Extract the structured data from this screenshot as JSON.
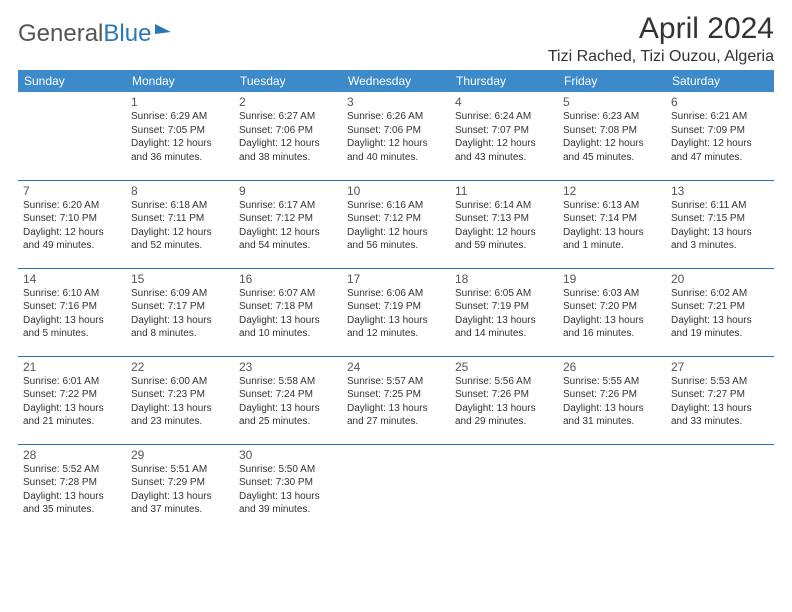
{
  "brand": {
    "part1": "General",
    "part2": "Blue"
  },
  "title": "April 2024",
  "location": "Tizi Rached, Tizi Ouzou, Algeria",
  "colors": {
    "header_bg": "#3c8ac9",
    "header_text": "#ffffff",
    "row_divider": "#2b6fa8",
    "text": "#333333",
    "logo_blue": "#2a78b8"
  },
  "weekdays": [
    "Sunday",
    "Monday",
    "Tuesday",
    "Wednesday",
    "Thursday",
    "Friday",
    "Saturday"
  ],
  "cells": [
    [
      null,
      {
        "d": "1",
        "sr": "6:29 AM",
        "ss": "7:05 PM",
        "dl1": "Daylight: 12 hours",
        "dl2": "and 36 minutes."
      },
      {
        "d": "2",
        "sr": "6:27 AM",
        "ss": "7:06 PM",
        "dl1": "Daylight: 12 hours",
        "dl2": "and 38 minutes."
      },
      {
        "d": "3",
        "sr": "6:26 AM",
        "ss": "7:06 PM",
        "dl1": "Daylight: 12 hours",
        "dl2": "and 40 minutes."
      },
      {
        "d": "4",
        "sr": "6:24 AM",
        "ss": "7:07 PM",
        "dl1": "Daylight: 12 hours",
        "dl2": "and 43 minutes."
      },
      {
        "d": "5",
        "sr": "6:23 AM",
        "ss": "7:08 PM",
        "dl1": "Daylight: 12 hours",
        "dl2": "and 45 minutes."
      },
      {
        "d": "6",
        "sr": "6:21 AM",
        "ss": "7:09 PM",
        "dl1": "Daylight: 12 hours",
        "dl2": "and 47 minutes."
      }
    ],
    [
      {
        "d": "7",
        "sr": "6:20 AM",
        "ss": "7:10 PM",
        "dl1": "Daylight: 12 hours",
        "dl2": "and 49 minutes."
      },
      {
        "d": "8",
        "sr": "6:18 AM",
        "ss": "7:11 PM",
        "dl1": "Daylight: 12 hours",
        "dl2": "and 52 minutes."
      },
      {
        "d": "9",
        "sr": "6:17 AM",
        "ss": "7:12 PM",
        "dl1": "Daylight: 12 hours",
        "dl2": "and 54 minutes."
      },
      {
        "d": "10",
        "sr": "6:16 AM",
        "ss": "7:12 PM",
        "dl1": "Daylight: 12 hours",
        "dl2": "and 56 minutes."
      },
      {
        "d": "11",
        "sr": "6:14 AM",
        "ss": "7:13 PM",
        "dl1": "Daylight: 12 hours",
        "dl2": "and 59 minutes."
      },
      {
        "d": "12",
        "sr": "6:13 AM",
        "ss": "7:14 PM",
        "dl1": "Daylight: 13 hours",
        "dl2": "and 1 minute."
      },
      {
        "d": "13",
        "sr": "6:11 AM",
        "ss": "7:15 PM",
        "dl1": "Daylight: 13 hours",
        "dl2": "and 3 minutes."
      }
    ],
    [
      {
        "d": "14",
        "sr": "6:10 AM",
        "ss": "7:16 PM",
        "dl1": "Daylight: 13 hours",
        "dl2": "and 5 minutes."
      },
      {
        "d": "15",
        "sr": "6:09 AM",
        "ss": "7:17 PM",
        "dl1": "Daylight: 13 hours",
        "dl2": "and 8 minutes."
      },
      {
        "d": "16",
        "sr": "6:07 AM",
        "ss": "7:18 PM",
        "dl1": "Daylight: 13 hours",
        "dl2": "and 10 minutes."
      },
      {
        "d": "17",
        "sr": "6:06 AM",
        "ss": "7:19 PM",
        "dl1": "Daylight: 13 hours",
        "dl2": "and 12 minutes."
      },
      {
        "d": "18",
        "sr": "6:05 AM",
        "ss": "7:19 PM",
        "dl1": "Daylight: 13 hours",
        "dl2": "and 14 minutes."
      },
      {
        "d": "19",
        "sr": "6:03 AM",
        "ss": "7:20 PM",
        "dl1": "Daylight: 13 hours",
        "dl2": "and 16 minutes."
      },
      {
        "d": "20",
        "sr": "6:02 AM",
        "ss": "7:21 PM",
        "dl1": "Daylight: 13 hours",
        "dl2": "and 19 minutes."
      }
    ],
    [
      {
        "d": "21",
        "sr": "6:01 AM",
        "ss": "7:22 PM",
        "dl1": "Daylight: 13 hours",
        "dl2": "and 21 minutes."
      },
      {
        "d": "22",
        "sr": "6:00 AM",
        "ss": "7:23 PM",
        "dl1": "Daylight: 13 hours",
        "dl2": "and 23 minutes."
      },
      {
        "d": "23",
        "sr": "5:58 AM",
        "ss": "7:24 PM",
        "dl1": "Daylight: 13 hours",
        "dl2": "and 25 minutes."
      },
      {
        "d": "24",
        "sr": "5:57 AM",
        "ss": "7:25 PM",
        "dl1": "Daylight: 13 hours",
        "dl2": "and 27 minutes."
      },
      {
        "d": "25",
        "sr": "5:56 AM",
        "ss": "7:26 PM",
        "dl1": "Daylight: 13 hours",
        "dl2": "and 29 minutes."
      },
      {
        "d": "26",
        "sr": "5:55 AM",
        "ss": "7:26 PM",
        "dl1": "Daylight: 13 hours",
        "dl2": "and 31 minutes."
      },
      {
        "d": "27",
        "sr": "5:53 AM",
        "ss": "7:27 PM",
        "dl1": "Daylight: 13 hours",
        "dl2": "and 33 minutes."
      }
    ],
    [
      {
        "d": "28",
        "sr": "5:52 AM",
        "ss": "7:28 PM",
        "dl1": "Daylight: 13 hours",
        "dl2": "and 35 minutes."
      },
      {
        "d": "29",
        "sr": "5:51 AM",
        "ss": "7:29 PM",
        "dl1": "Daylight: 13 hours",
        "dl2": "and 37 minutes."
      },
      {
        "d": "30",
        "sr": "5:50 AM",
        "ss": "7:30 PM",
        "dl1": "Daylight: 13 hours",
        "dl2": "and 39 minutes."
      },
      null,
      null,
      null,
      null
    ]
  ]
}
